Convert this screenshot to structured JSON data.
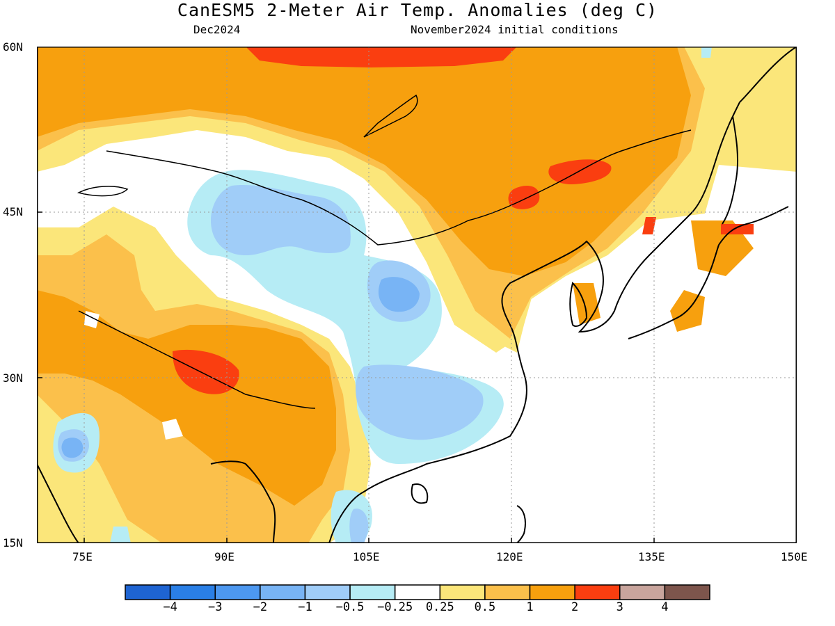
{
  "header": {
    "title": "CanESM5 2-Meter Air Temp. Anomalies (deg C)",
    "valid_month": "Dec2024",
    "init": "November2024 initial conditions"
  },
  "axes": {
    "lat_labels": [
      "60N",
      "45N",
      "30N",
      "15N"
    ],
    "lon_labels": [
      "75E",
      "90E",
      "105E",
      "120E",
      "135E",
      "150E"
    ]
  },
  "colorbar": {
    "labels": [
      "−4",
      "−3",
      "−2",
      "−1",
      "−0.5",
      "−0.25",
      "0.25",
      "0.5",
      "1",
      "2",
      "3",
      "4"
    ],
    "colors": [
      "#1e64d2",
      "#2a7fe6",
      "#4d98f0",
      "#78b4f5",
      "#a0cdf8",
      "#b6ecf5",
      "#ffffff",
      "#fbe67a",
      "#fbc04b",
      "#f7a00e",
      "#fa3e10",
      "#c9a59d",
      "#7d554c"
    ]
  },
  "map": {
    "lon_range": [
      70,
      150
    ],
    "lat_range": [
      15,
      60
    ],
    "projection": "lat-lon",
    "gridlines": "dotted"
  }
}
